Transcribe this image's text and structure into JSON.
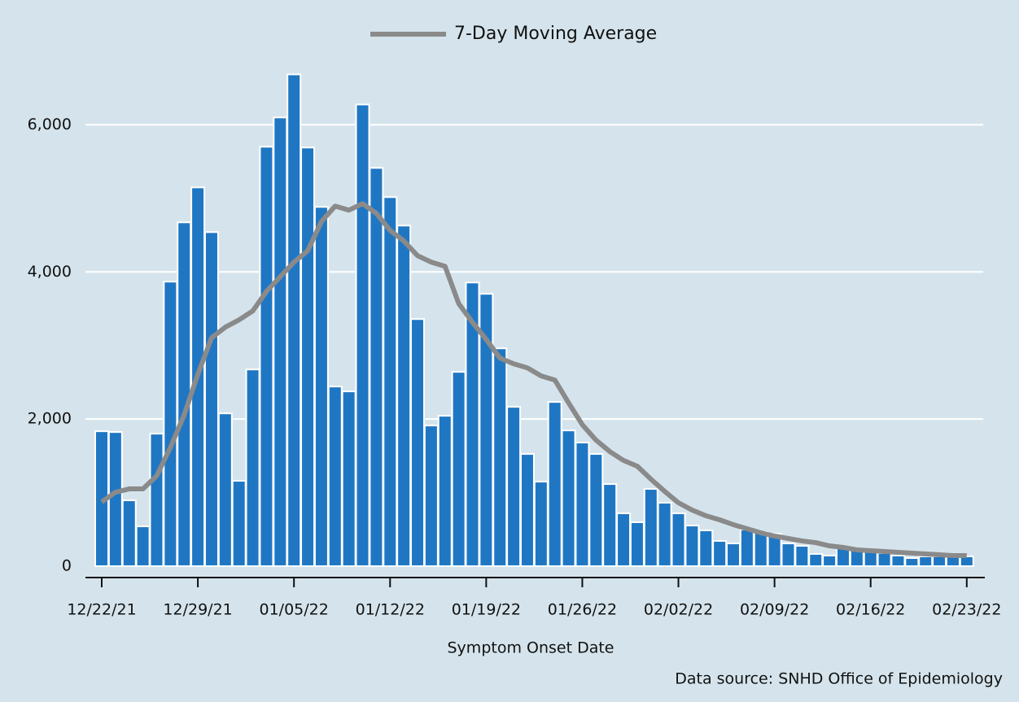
{
  "chart_data": {
    "type": "bar",
    "x_label": "Symptom Onset Date",
    "source": "Data source: SNHD Office of Epidemiology",
    "categories": [
      "12/22/21",
      null,
      null,
      null,
      null,
      null,
      null,
      "12/29/21",
      null,
      null,
      null,
      null,
      null,
      null,
      "01/05/22",
      null,
      null,
      null,
      null,
      null,
      null,
      "01/12/22",
      null,
      null,
      null,
      null,
      null,
      null,
      "01/19/22",
      null,
      null,
      null,
      null,
      null,
      null,
      "01/26/22",
      null,
      null,
      null,
      null,
      null,
      null,
      "02/02/22",
      null,
      null,
      null,
      null,
      null,
      null,
      "02/09/22",
      null,
      null,
      null,
      null,
      null,
      null,
      "02/16/22",
      null,
      null,
      null,
      null,
      null,
      null,
      "02/23/22"
    ],
    "series": [
      {
        "type": "bar",
        "color": "#1f77c4",
        "values": [
          1834,
          1823,
          895,
          541,
          1801,
          3868,
          4674,
          5149,
          4541,
          2077,
          1160,
          2674,
          5702,
          6100,
          6685,
          5691,
          4884,
          2442,
          2376,
          6276,
          5414,
          5017,
          4630,
          3359,
          1912,
          2044,
          2641,
          3856,
          3702,
          2961,
          2166,
          1525,
          1149,
          2232,
          1845,
          1680,
          1525,
          1116,
          718,
          597,
          1050,
          862,
          718,
          552,
          486,
          343,
          309,
          497,
          464,
          442,
          309,
          276,
          166,
          144,
          254,
          221,
          199,
          177,
          144,
          110,
          133,
          133,
          144,
          133
        ]
      },
      {
        "type": "line",
        "name": "7-Day Moving Average",
        "color": "#8a8a8a",
        "values": [
          873,
          1005,
          1050,
          1050,
          1227,
          1613,
          2055,
          2608,
          3105,
          3249,
          3348,
          3470,
          3735,
          3934,
          4133,
          4287,
          4685,
          4895,
          4840,
          4928,
          4796,
          4564,
          4420,
          4221,
          4133,
          4077,
          3569,
          3315,
          3083,
          2829,
          2751,
          2696,
          2586,
          2530,
          2221,
          1923,
          1713,
          1558,
          1437,
          1359,
          1182,
          1017,
          862,
          762,
          685,
          630,
          564,
          508,
          453,
          409,
          376,
          343,
          320,
          276,
          254,
          221,
          210,
          199,
          188,
          177,
          166,
          155,
          144,
          144
        ]
      }
    ],
    "ylim": [
      -155,
      7000
    ],
    "yticks": [
      0,
      {
        "value": 2000,
        "label": "2,000"
      },
      {
        "value": 4000,
        "label": "4,000"
      },
      {
        "value": 6000,
        "label": "6,000"
      }
    ],
    "grid": true,
    "legend": "top"
  }
}
